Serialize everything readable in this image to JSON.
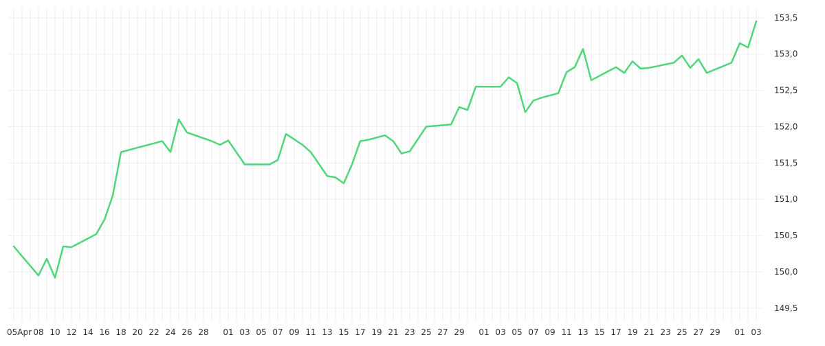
{
  "chart_data": {
    "type": "line",
    "grid": true,
    "line_color": "#4fd67a",
    "grid_color": "#eeeeee",
    "text_color": "#333333",
    "ylim": [
      149.3,
      153.65
    ],
    "y_ticks": [
      "149,5",
      "150,0",
      "150,5",
      "151,0",
      "151,5",
      "152,0",
      "152,5",
      "153,0",
      "153,5"
    ],
    "y_tick_values": [
      149.5,
      150.0,
      150.5,
      151.0,
      151.5,
      152.0,
      152.5,
      153.0,
      153.5
    ],
    "x_tick_labels": [
      "05Apr",
      "08",
      "10",
      "12",
      "14",
      "16",
      "18",
      "20",
      "22",
      "24",
      "26",
      "28",
      "01",
      "03",
      "05",
      "07",
      "09",
      "11",
      "13",
      "15",
      "17",
      "19",
      "21",
      "23",
      "25",
      "27",
      "29",
      "01",
      "03",
      "05",
      "07",
      "09",
      "11",
      "13",
      "15",
      "17",
      "19",
      "21",
      "23",
      "25",
      "27",
      "29",
      "01",
      "03"
    ],
    "x_tick_index": [
      0,
      3,
      5,
      7,
      9,
      11,
      13,
      15,
      17,
      19,
      21,
      23,
      26,
      28,
      30,
      32,
      34,
      36,
      38,
      40,
      42,
      44,
      46,
      48,
      50,
      52,
      54,
      57,
      59,
      61,
      63,
      65,
      67,
      69,
      71,
      73,
      75,
      77,
      79,
      81,
      83,
      85,
      88,
      90
    ],
    "x_span": 91,
    "series": [
      {
        "x": [
          0,
          3,
          4,
          5,
          6,
          7,
          10,
          11,
          12,
          13,
          18,
          19,
          20,
          21,
          24,
          25,
          26,
          28,
          30,
          31,
          32,
          33,
          35,
          36,
          38,
          39,
          40,
          41,
          42,
          43,
          45,
          46,
          47,
          48,
          50,
          51,
          52,
          53,
          54,
          55,
          56,
          59,
          60,
          61,
          62,
          63,
          64,
          66,
          67,
          68,
          69,
          70,
          73,
          74,
          75,
          76,
          77,
          80,
          81,
          82,
          83,
          84,
          87,
          88,
          89,
          90
        ],
        "values": [
          150.35,
          149.95,
          150.18,
          149.92,
          150.35,
          150.34,
          150.52,
          150.72,
          151.05,
          151.65,
          151.8,
          151.65,
          152.1,
          151.92,
          151.8,
          151.75,
          151.81,
          151.48,
          151.48,
          151.48,
          151.54,
          151.9,
          151.75,
          151.65,
          151.32,
          151.3,
          151.22,
          151.48,
          151.8,
          151.82,
          151.88,
          151.8,
          151.63,
          151.66,
          152.0,
          152.01,
          152.02,
          152.03,
          152.27,
          152.23,
          152.55,
          152.55,
          152.68,
          152.6,
          152.2,
          152.36,
          152.4,
          152.46,
          152.75,
          152.82,
          153.07,
          152.64,
          152.82,
          152.74,
          152.9,
          152.8,
          152.81,
          152.88,
          152.98,
          152.81,
          152.93,
          152.74,
          152.88,
          153.15,
          153.09,
          153.45
        ]
      }
    ]
  }
}
